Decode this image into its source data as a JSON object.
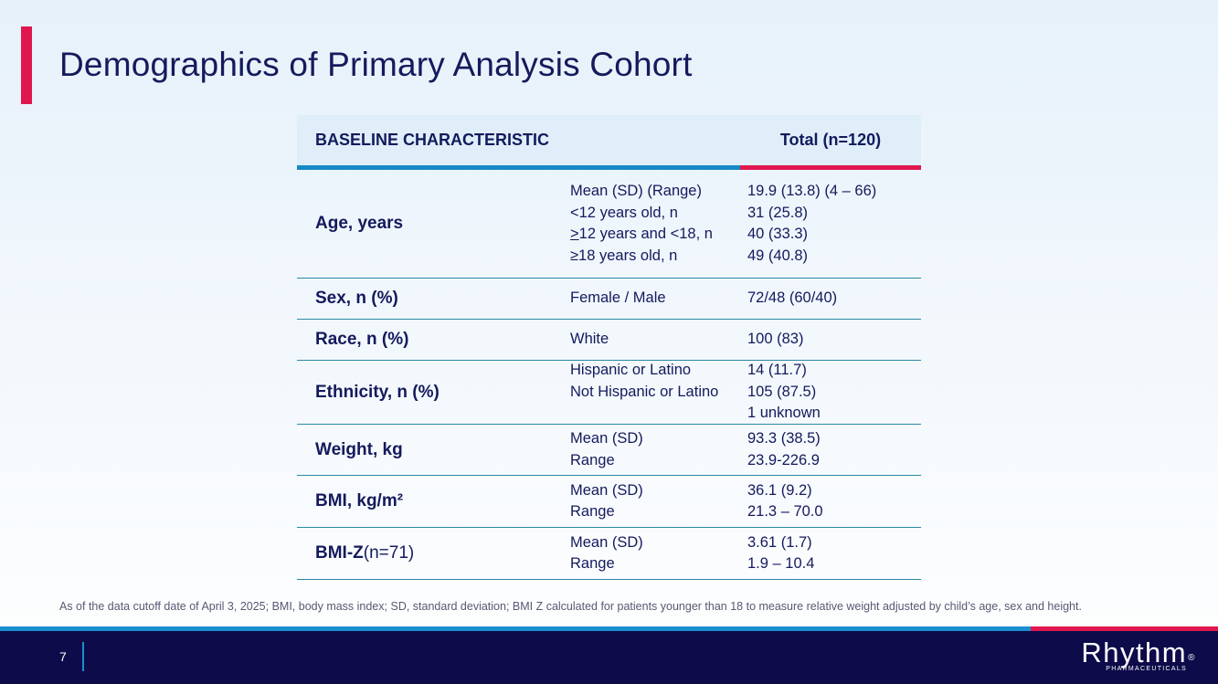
{
  "title": "Demographics of Primary Analysis Cohort",
  "table": {
    "header": {
      "characteristic": "BASELINE CHARACTERISTIC",
      "total": "Total (n=120)"
    },
    "rows": [
      {
        "label": "Age, years",
        "label_suffix": "",
        "stats": [
          "Mean (SD) (Range)",
          "<12 years old, n",
          ">12 years and <18, n",
          "≥18 years old, n"
        ],
        "values": [
          "19.9 (13.8) (4 – 66)",
          "31 (25.8)",
          "40 (33.3)",
          "49 (40.8)"
        ]
      },
      {
        "label": "Sex, n (%)",
        "label_suffix": "",
        "stats": [
          "Female / Male"
        ],
        "values": [
          "72/48 (60/40)"
        ]
      },
      {
        "label": "Race, n (%)",
        "label_suffix": "",
        "stats": [
          "White"
        ],
        "values": [
          "100 (83)"
        ]
      },
      {
        "label": "Ethnicity, n (%)",
        "label_suffix": "",
        "stats": [
          "Hispanic or Latino",
          "Not Hispanic or Latino",
          ""
        ],
        "values": [
          "14 (11.7)",
          "105 (87.5)",
          "1 unknown"
        ]
      },
      {
        "label": "Weight, kg",
        "label_suffix": "",
        "stats": [
          "Mean (SD)",
          "Range"
        ],
        "values": [
          "93.3 (38.5)",
          "23.9-226.9"
        ]
      },
      {
        "label": "BMI, kg/m²",
        "label_suffix": "",
        "stats": [
          "Mean (SD)",
          "Range"
        ],
        "values": [
          "36.1 (9.2)",
          "21.3 – 70.0"
        ]
      },
      {
        "label": "BMI-Z",
        "label_suffix": " (n=71)",
        "stats": [
          "Mean (SD)",
          "Range"
        ],
        "values": [
          "3.61 (1.7)",
          "1.9 – 10.4"
        ]
      }
    ]
  },
  "footnote": "As of the data cutoff date of April 3, 2025; BMI, body mass index; SD, standard deviation; BMI Z calculated for patients younger than 18 to measure relative weight adjusted by child’s age, sex and height.",
  "footer": {
    "page_number": "7",
    "logo_name": "Rhythm",
    "logo_mark": "®",
    "logo_sub": "PHARMACEUTICALS"
  },
  "colors": {
    "navy": "#141a5c",
    "pink": "#e0174f",
    "blue": "#1688c4",
    "footer_bg": "#0d0b4a"
  }
}
